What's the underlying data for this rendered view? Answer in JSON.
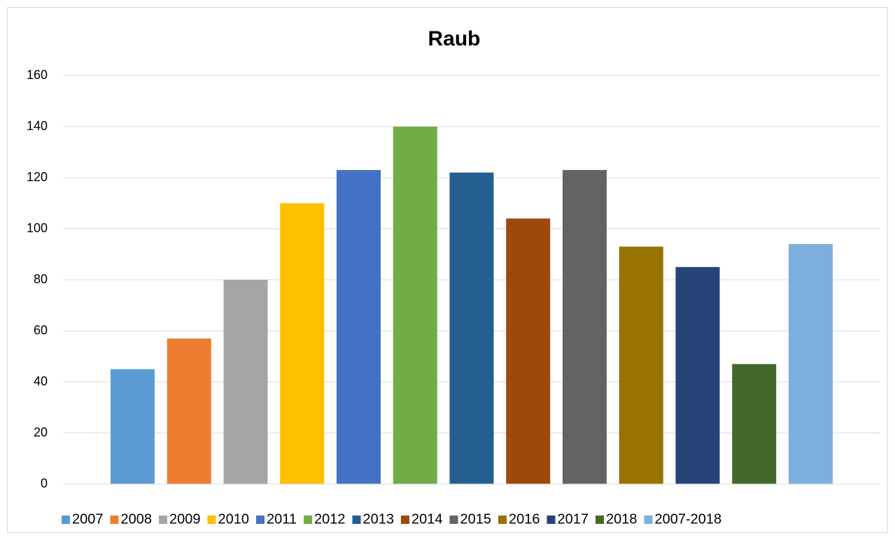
{
  "chart_data": {
    "type": "bar",
    "title": "Raub",
    "categories": [
      null
    ],
    "series": [
      {
        "name": "2007",
        "color": "#5b9bd5",
        "values": [
          45
        ]
      },
      {
        "name": "2008",
        "color": "#ed7d31",
        "values": [
          57
        ]
      },
      {
        "name": "2009",
        "color": "#a5a5a5",
        "values": [
          80
        ]
      },
      {
        "name": "2010",
        "color": "#ffc000",
        "values": [
          110
        ]
      },
      {
        "name": "2011",
        "color": "#4472c4",
        "values": [
          123
        ]
      },
      {
        "name": "2012",
        "color": "#70ad47",
        "values": [
          140
        ]
      },
      {
        "name": "2013",
        "color": "#255e91",
        "values": [
          122
        ]
      },
      {
        "name": "2014",
        "color": "#9e480e",
        "values": [
          104
        ]
      },
      {
        "name": "2015",
        "color": "#636363",
        "values": [
          123
        ]
      },
      {
        "name": "2016",
        "color": "#997300",
        "values": [
          93
        ]
      },
      {
        "name": "2017",
        "color": "#264478",
        "values": [
          85
        ]
      },
      {
        "name": "2018",
        "color": "#43682b",
        "values": [
          47
        ]
      },
      {
        "name": "2007-2018",
        "color": "#7cafdd",
        "values": [
          94
        ]
      }
    ],
    "ylim": [
      0,
      160
    ],
    "yticks": [
      0,
      20,
      40,
      60,
      80,
      100,
      120,
      140,
      160
    ],
    "grid": true,
    "legend": "bottom"
  }
}
